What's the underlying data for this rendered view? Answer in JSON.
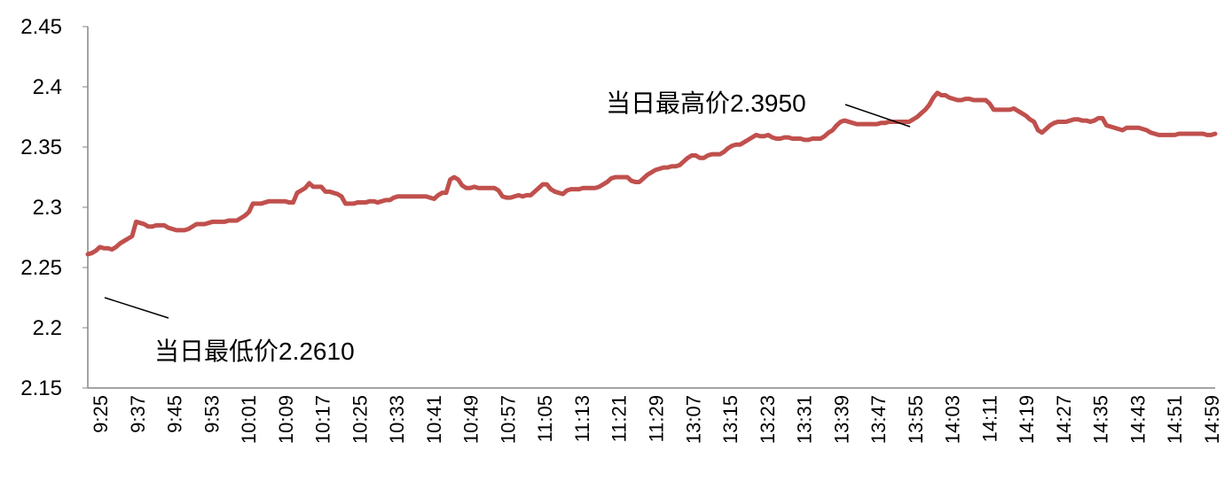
{
  "chart_data": {
    "type": "line",
    "title": "",
    "xlabel": "",
    "ylabel": "",
    "ylim": [
      2.15,
      2.45
    ],
    "y_ticks": [
      "2.15",
      "2.2",
      "2.25",
      "2.3",
      "2.35",
      "2.4",
      "2.45"
    ],
    "grid": false,
    "legend": "none",
    "x_tick_labels": [
      "9:25",
      "9:37",
      "9:45",
      "9:53",
      "10:01",
      "10:09",
      "10:17",
      "10:25",
      "10:33",
      "10:41",
      "10:49",
      "10:57",
      "11:05",
      "11:13",
      "11:21",
      "11:29",
      "13:07",
      "13:15",
      "13:23",
      "13:31",
      "13:39",
      "13:47",
      "13:55",
      "14:03",
      "14:11",
      "14:19",
      "14:27",
      "14:35",
      "14:43",
      "14:51",
      "14:59"
    ],
    "line_color": "#c0504d",
    "series": [
      {
        "values": [
          2.261,
          2.262,
          2.264,
          2.267,
          2.266,
          2.266,
          2.265,
          2.267,
          2.27,
          2.272,
          2.274,
          2.276,
          2.288,
          2.287,
          2.286,
          2.284,
          2.284,
          2.285,
          2.285,
          2.285,
          2.283,
          2.282,
          2.281,
          2.281,
          2.281,
          2.282,
          2.284,
          2.286,
          2.286,
          2.286,
          2.287,
          2.288,
          2.288,
          2.288,
          2.288,
          2.289,
          2.289,
          2.289,
          2.291,
          2.293,
          2.296,
          2.303,
          2.303,
          2.303,
          2.304,
          2.305,
          2.305,
          2.305,
          2.305,
          2.305,
          2.304,
          2.304,
          2.312,
          2.314,
          2.316,
          2.32,
          2.317,
          2.317,
          2.317,
          2.313,
          2.313,
          2.312,
          2.311,
          2.309,
          2.303,
          2.303,
          2.303,
          2.304,
          2.304,
          2.304,
          2.305,
          2.305,
          2.304,
          2.305,
          2.306,
          2.306,
          2.308,
          2.309,
          2.309,
          2.309,
          2.309,
          2.309,
          2.309,
          2.309,
          2.309,
          2.308,
          2.307,
          2.31,
          2.312,
          2.312,
          2.323,
          2.325,
          2.323,
          2.318,
          2.316,
          2.316,
          2.317,
          2.316,
          2.316,
          2.316,
          2.316,
          2.316,
          2.314,
          2.309,
          2.308,
          2.308,
          2.309,
          2.31,
          2.309,
          2.31,
          2.31,
          2.313,
          2.316,
          2.319,
          2.319,
          2.315,
          2.313,
          2.312,
          2.311,
          2.314,
          2.315,
          2.315,
          2.315,
          2.316,
          2.316,
          2.316,
          2.316,
          2.317,
          2.319,
          2.321,
          2.324,
          2.325,
          2.325,
          2.325,
          2.325,
          2.322,
          2.321,
          2.321,
          2.324,
          2.327,
          2.329,
          2.331,
          2.332,
          2.333,
          2.333,
          2.334,
          2.334,
          2.335,
          2.338,
          2.341,
          2.343,
          2.343,
          2.341,
          2.341,
          2.343,
          2.344,
          2.344,
          2.344,
          2.346,
          2.349,
          2.351,
          2.352,
          2.352,
          2.354,
          2.356,
          2.358,
          2.36,
          2.359,
          2.359,
          2.36,
          2.358,
          2.357,
          2.357,
          2.358,
          2.358,
          2.357,
          2.357,
          2.357,
          2.356,
          2.356,
          2.357,
          2.357,
          2.357,
          2.359,
          2.362,
          2.364,
          2.368,
          2.371,
          2.372,
          2.371,
          2.37,
          2.369,
          2.369,
          2.369,
          2.369,
          2.369,
          2.369,
          2.37,
          2.37,
          2.371,
          2.371,
          2.371,
          2.371,
          2.371,
          2.371,
          2.373,
          2.375,
          2.378,
          2.381,
          2.385,
          2.391,
          2.395,
          2.393,
          2.393,
          2.391,
          2.39,
          2.389,
          2.389,
          2.39,
          2.39,
          2.389,
          2.389,
          2.389,
          2.389,
          2.386,
          2.381,
          2.381,
          2.381,
          2.381,
          2.381,
          2.382,
          2.38,
          2.378,
          2.376,
          2.373,
          2.371,
          2.364,
          2.362,
          2.365,
          2.368,
          2.37,
          2.371,
          2.371,
          2.371,
          2.372,
          2.373,
          2.373,
          2.372,
          2.372,
          2.371,
          2.372,
          2.374,
          2.374,
          2.368,
          2.367,
          2.366,
          2.365,
          2.364,
          2.366,
          2.366,
          2.366,
          2.366,
          2.365,
          2.364,
          2.362,
          2.361,
          2.36,
          2.36,
          2.36,
          2.36,
          2.36,
          2.361,
          2.361,
          2.361,
          2.361,
          2.361,
          2.361,
          2.361,
          2.36,
          2.36,
          2.361
        ]
      }
    ],
    "annotations": [
      {
        "text": "当日最低价2.2610"
      },
      {
        "text": "当日最高价2.3950"
      }
    ]
  }
}
